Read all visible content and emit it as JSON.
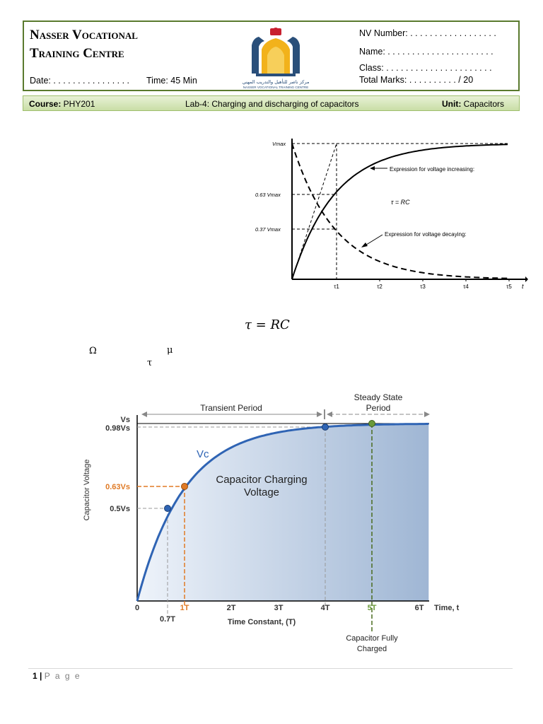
{
  "header": {
    "org_line1": "Nasser Vocational",
    "org_line2": "Training Centre",
    "date_label": "Date: . . . . . . . . . . . . . . . .",
    "time_label": "Time: 45 Min",
    "nv_number_label": "NV Number: . . . . . . . . . . . . . . . . . .",
    "name_label": "Name: . . . . . . . . . . . . . . . . . . . . . .",
    "class_label": "Class: . . . . . . . . . . . . . . . . . . . . . .",
    "total_marks_label": "Total Marks: . . . . . . . . . . / 20",
    "logo_text_arabic": "مركز ناصر للتأهيل والتدريب المهني",
    "logo_text_english": "NASSER VOCATIONAL TRAINING CENTRE"
  },
  "course_bar": {
    "course_key": "Course:",
    "course_value": " PHY201",
    "lab_title": "Lab-4: Charging and discharging of capacitors",
    "unit_key": "Unit:",
    "unit_value": " Capacitors"
  },
  "chart1": {
    "ylabels": {
      "vmax": "Vmax",
      "v063": "0.63 Vmax",
      "v037": "0.37 Vmax"
    },
    "xticks": [
      "τ1",
      "τ2",
      "τ3",
      "τ4",
      "τ5"
    ],
    "axis_end": "t",
    "annotation_increasing": "Expression for voltage increasing:",
    "annotation_decaying": "Expression for voltage decaying:",
    "tau_formula": "τ = RC"
  },
  "equation": "τ = RC",
  "symbols": {
    "omega": "Ω",
    "mu": "μ",
    "tau": "τ"
  },
  "chart2": {
    "transient_label": "Transient Period",
    "steady_label_line1": "Steady State",
    "steady_label_line2": "Period",
    "vs": "Vs",
    "v098": "0.98Vs",
    "v063": "0.63Vs",
    "v05": "0.5Vs",
    "ylabel": "Capacitor Voltage",
    "curve_label": "Vc",
    "center_line1": "Capacitor Charging",
    "center_line2": "Voltage",
    "xticks": [
      "0",
      "1T",
      "2T",
      "3T",
      "4T",
      "5T",
      "6T"
    ],
    "x_end_label": "Time, t",
    "x07": "0.7T",
    "xlabel": "Time Constant, (T)",
    "charged_line1": "Capacitor Fully",
    "charged_line2": "Charged",
    "colors": {
      "curve": "#2f64b4",
      "orange": "#e07a25",
      "green_point": "#6a9a3a"
    }
  },
  "footer": {
    "page_number": "1",
    "separator": " | ",
    "page_word": "P a g e"
  }
}
